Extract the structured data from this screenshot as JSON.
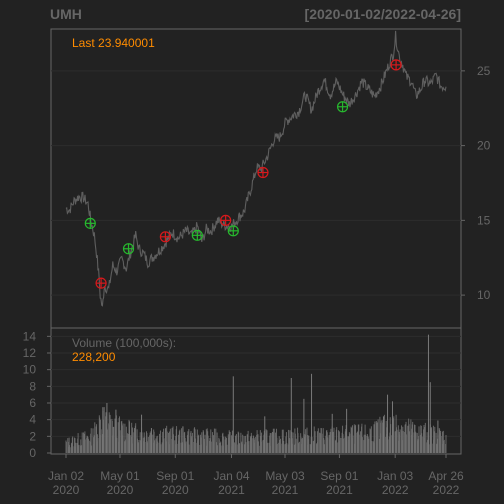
{
  "chart_data": {
    "type": "line",
    "title": "UMH",
    "date_range": "[2020-01-02/2022-04-26]",
    "price_panel": {
      "last_label": "Last 23.940001",
      "yticks": [
        10,
        15,
        20,
        25
      ],
      "ylim": [
        7.8,
        27.8
      ],
      "grid": true,
      "series": [
        {
          "values": [
            [
              "2020-01-02",
              15.8
            ],
            [
              "2020-01-10",
              15.7
            ],
            [
              "2020-01-20",
              16.3
            ],
            [
              "2020-01-31",
              16.6
            ],
            [
              "2020-02-10",
              16.5
            ],
            [
              "2020-02-20",
              16.1
            ],
            [
              "2020-02-26",
              15.0
            ],
            [
              "2020-03-05",
              14.0
            ],
            [
              "2020-03-10",
              12.8
            ],
            [
              "2020-03-16",
              11.0
            ],
            [
              "2020-03-18",
              10.0
            ],
            [
              "2020-03-23",
              9.1
            ],
            [
              "2020-03-27",
              10.6
            ],
            [
              "2020-04-06",
              10.4
            ],
            [
              "2020-04-15",
              12.0
            ],
            [
              "2020-04-24",
              11.6
            ],
            [
              "2020-05-05",
              12.4
            ],
            [
              "2020-05-15",
              11.8
            ],
            [
              "2020-05-26",
              13.0
            ],
            [
              "2020-06-05",
              14.0
            ],
            [
              "2020-06-12",
              13.1
            ],
            [
              "2020-06-22",
              12.8
            ],
            [
              "2020-07-02",
              12.2
            ],
            [
              "2020-07-15",
              12.6
            ],
            [
              "2020-07-28",
              13.0
            ],
            [
              "2020-08-10",
              13.5
            ],
            [
              "2020-08-25",
              14.2
            ],
            [
              "2020-09-08",
              13.8
            ],
            [
              "2020-09-25",
              14.3
            ],
            [
              "2020-10-07",
              14.0
            ],
            [
              "2020-10-20",
              14.6
            ],
            [
              "2020-10-30",
              13.6
            ],
            [
              "2020-11-09",
              14.4
            ],
            [
              "2020-11-20",
              14.3
            ],
            [
              "2020-12-04",
              15.0
            ],
            [
              "2020-12-18",
              14.7
            ],
            [
              "2021-01-04",
              14.6
            ],
            [
              "2021-01-20",
              15.2
            ],
            [
              "2021-02-01",
              15.6
            ],
            [
              "2021-02-15",
              17.0
            ],
            [
              "2021-03-01",
              18.5
            ],
            [
              "2021-03-12",
              18.5
            ],
            [
              "2021-03-25",
              19.3
            ],
            [
              "2021-04-08",
              20.4
            ],
            [
              "2021-04-22",
              20.6
            ],
            [
              "2021-05-05",
              21.6
            ],
            [
              "2021-05-20",
              22.0
            ],
            [
              "2021-06-03",
              22.3
            ],
            [
              "2021-06-17",
              23.4
            ],
            [
              "2021-07-01",
              22.4
            ],
            [
              "2021-07-15",
              23.6
            ],
            [
              "2021-07-29",
              24.4
            ],
            [
              "2021-08-12",
              23.4
            ],
            [
              "2021-08-26",
              24.3
            ],
            [
              "2021-09-09",
              23.4
            ],
            [
              "2021-09-23",
              22.8
            ],
            [
              "2021-10-07",
              23.4
            ],
            [
              "2021-10-21",
              24.3
            ],
            [
              "2021-11-04",
              23.8
            ],
            [
              "2021-11-18",
              23.3
            ],
            [
              "2021-12-02",
              24.0
            ],
            [
              "2021-12-16",
              25.1
            ],
            [
              "2021-12-30",
              26.2
            ],
            [
              "2022-01-04",
              27.3
            ],
            [
              "2022-01-12",
              26.0
            ],
            [
              "2022-01-20",
              25.4
            ],
            [
              "2022-01-28",
              24.6
            ],
            [
              "2022-02-08",
              24.3
            ],
            [
              "2022-02-18",
              23.3
            ],
            [
              "2022-03-01",
              23.8
            ],
            [
              "2022-03-10",
              24.4
            ],
            [
              "2022-03-22",
              24.1
            ],
            [
              "2022-04-04",
              24.7
            ],
            [
              "2022-04-14",
              24.0
            ],
            [
              "2022-04-26",
              23.94
            ]
          ]
        }
      ],
      "markers": [
        {
          "date": "2020-02-25",
          "value": 14.8,
          "color": "#27b82e"
        },
        {
          "date": "2020-03-20",
          "value": 10.8,
          "color": "#d7191c"
        },
        {
          "date": "2020-05-20",
          "value": 13.1,
          "color": "#27b82e"
        },
        {
          "date": "2020-08-10",
          "value": 13.9,
          "color": "#d7191c"
        },
        {
          "date": "2020-10-20",
          "value": 14.0,
          "color": "#27b82e"
        },
        {
          "date": "2020-12-22",
          "value": 15.0,
          "color": "#d7191c"
        },
        {
          "date": "2021-01-08",
          "value": 14.3,
          "color": "#27b82e"
        },
        {
          "date": "2021-03-15",
          "value": 18.2,
          "color": "#d7191c"
        },
        {
          "date": "2021-09-08",
          "value": 22.6,
          "color": "#27b82e"
        },
        {
          "date": "2022-01-05",
          "value": 25.4,
          "color": "#d7191c"
        }
      ]
    },
    "volume_panel": {
      "label": "Volume (100,000s):",
      "last_value": "228,200",
      "yticks": [
        0,
        2,
        4,
        6,
        8,
        10,
        12,
        14
      ],
      "ylim": [
        0,
        15
      ],
      "baseline": [
        [
          "2020-01-02",
          1.2
        ],
        [
          "2020-03-01",
          2.0
        ],
        [
          "2020-03-20",
          4.0
        ],
        [
          "2020-04-15",
          3.2
        ],
        [
          "2020-06-01",
          2.4
        ],
        [
          "2020-09-01",
          2.1
        ],
        [
          "2020-12-01",
          1.9
        ],
        [
          "2021-01-15",
          1.7
        ],
        [
          "2021-04-01",
          1.9
        ],
        [
          "2021-08-01",
          2.1
        ],
        [
          "2021-11-01",
          2.3
        ],
        [
          "2022-01-01",
          3.4
        ],
        [
          "2022-02-15",
          2.6
        ],
        [
          "2022-04-26",
          2.0
        ]
      ],
      "spikes": [
        [
          "2020-03-24",
          5.5
        ],
        [
          "2020-04-02",
          6.0
        ],
        [
          "2020-04-22",
          5.2
        ],
        [
          "2020-05-22",
          3.8
        ],
        [
          "2020-06-18",
          4.6
        ],
        [
          "2020-07-10",
          3.0
        ],
        [
          "2020-09-18",
          3.2
        ],
        [
          "2021-01-08",
          9.2
        ],
        [
          "2021-03-19",
          4.4
        ],
        [
          "2021-05-17",
          9.0
        ],
        [
          "2021-06-14",
          6.5
        ],
        [
          "2021-07-01",
          9.5
        ],
        [
          "2021-08-16",
          4.7
        ],
        [
          "2021-09-17",
          5.3
        ],
        [
          "2021-12-08",
          4.4
        ],
        [
          "2021-12-17",
          7.0
        ],
        [
          "2021-12-28",
          6.2
        ],
        [
          "2022-03-18",
          14.2
        ],
        [
          "2022-03-22",
          8.5
        ],
        [
          "2022-04-08",
          3.9
        ]
      ]
    },
    "x_axis": {
      "ticks": [
        {
          "date": "2020-01-02",
          "line1": "Jan 02",
          "line2": "2020"
        },
        {
          "date": "2020-05-01",
          "line1": "May 01",
          "line2": "2020"
        },
        {
          "date": "2020-09-01",
          "line1": "Sep 01",
          "line2": "2020"
        },
        {
          "date": "2021-01-04",
          "line1": "Jan 04",
          "line2": "2021"
        },
        {
          "date": "2021-05-03",
          "line1": "May 03",
          "line2": "2021"
        },
        {
          "date": "2021-09-01",
          "line1": "Sep 01",
          "line2": "2021"
        },
        {
          "date": "2022-01-03",
          "line1": "Jan 03",
          "line2": "2022"
        },
        {
          "date": "2022-04-26",
          "line1": "Apr 26",
          "line2": "2022"
        }
      ],
      "xlim": [
        "2020-01-02",
        "2022-04-26"
      ]
    },
    "colors": {
      "background": "#222222",
      "price_line": "#5f5f5f",
      "volume": "#6e6e6e",
      "text": "#666666",
      "highlight": "#ff8c00",
      "frame": "#666666"
    }
  }
}
